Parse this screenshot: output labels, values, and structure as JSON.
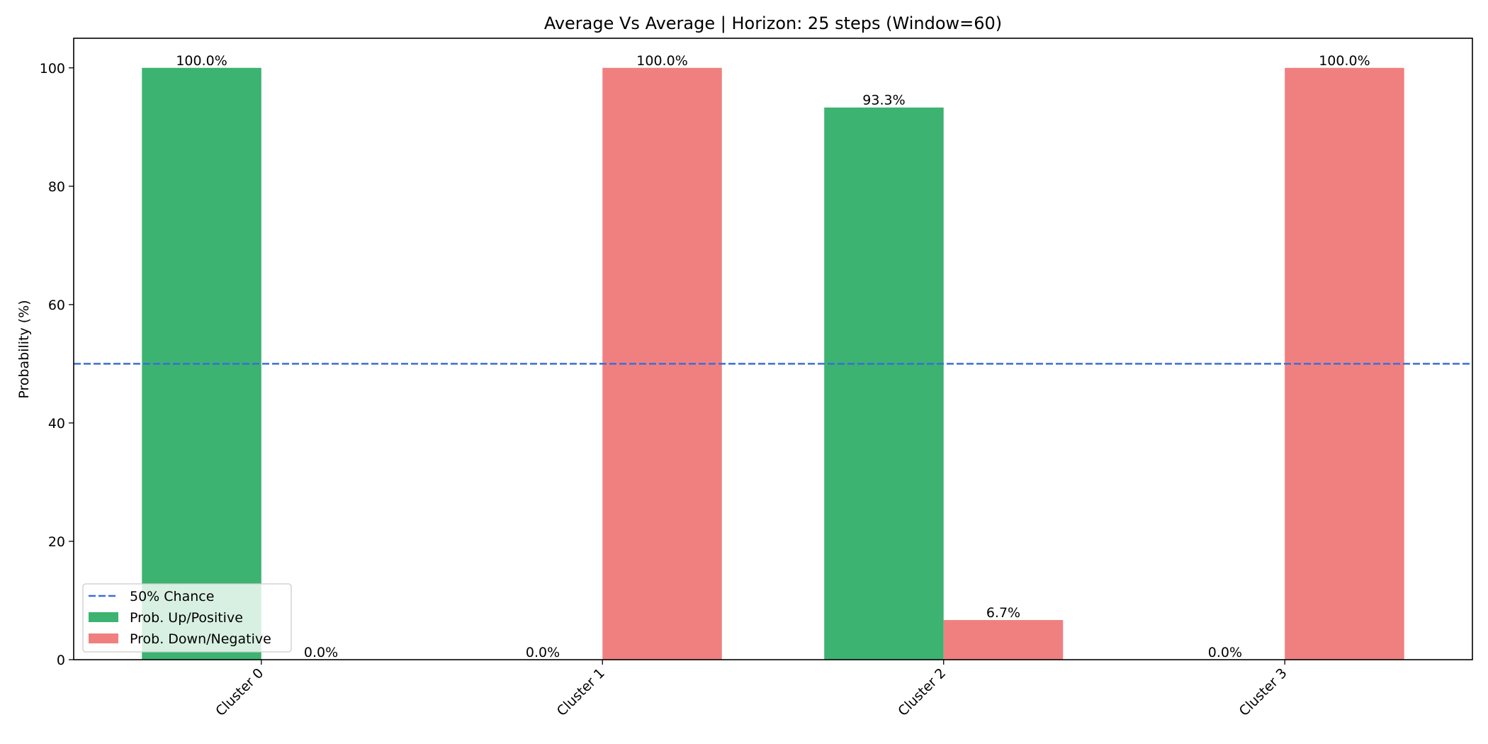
{
  "chart_data": {
    "type": "bar",
    "title": "Average Vs Average | Horizon: 25 steps (Window=60)",
    "xlabel": "",
    "ylabel": "Probability (%)",
    "categories": [
      "Cluster 0",
      "Cluster 1",
      "Cluster 2",
      "Cluster 3"
    ],
    "series": [
      {
        "name": "Prob. Up/Positive",
        "color": "#3cb371",
        "values": [
          100.0,
          0.0,
          93.3,
          0.0
        ],
        "labels": [
          "100.0%",
          "0.0%",
          "93.3%",
          "0.0%"
        ]
      },
      {
        "name": "Prob. Down/Negative",
        "color": "#f08080",
        "values": [
          0.0,
          100.0,
          6.7,
          100.0
        ],
        "labels": [
          "0.0%",
          "100.0%",
          "6.7%",
          "100.0%"
        ]
      }
    ],
    "reference_line": {
      "name": "50% Chance",
      "value": 50,
      "color": "#3b6fd8",
      "style": "dashed"
    },
    "ylim": [
      0,
      105
    ],
    "yticks": [
      0,
      20,
      40,
      60,
      80,
      100
    ],
    "grid": false,
    "legend_position": "lower-left",
    "xtick_rotation": "45 degrees"
  }
}
